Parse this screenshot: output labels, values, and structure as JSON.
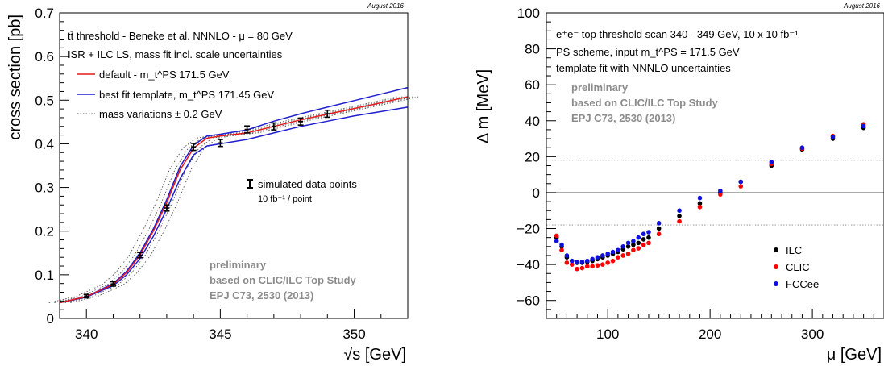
{
  "chart_data": [
    {
      "type": "line",
      "date_stamp": "August 2016",
      "xlabel": "√s [GeV]",
      "ylabel": "cross section [pb]",
      "xlim": [
        339,
        352
      ],
      "ylim": [
        0,
        0.7
      ],
      "x_ticks": [
        "340",
        "345",
        "350"
      ],
      "y_ticks": [
        "0",
        "0.1",
        "0.2",
        "0.3",
        "0.4",
        "0.5",
        "0.6",
        "0.7"
      ],
      "header_lines": [
        "tt̄ threshold - Beneke et al. NNNLO - μ = 80 GeV",
        "ISR + ILC LS, mass fit incl. scale uncertainties"
      ],
      "legend": [
        {
          "label": "default - m_t^PS 171.5 GeV",
          "color": "#e41a1c",
          "style": "solid"
        },
        {
          "label": "best fit template,  m_t^PS 171.45 GeV",
          "color": "#1f1fd0",
          "style": "solid"
        },
        {
          "label": "mass variations ± 0.2 GeV",
          "color": "#555555",
          "style": "dotted"
        }
      ],
      "data_legend": {
        "label": "simulated data points",
        "sublabel": "10 fb⁻¹ / point"
      },
      "watermark": [
        "preliminary",
        "based on CLIC/ILC Top Study",
        "EPJ C73, 2530 (2013)"
      ],
      "series": [
        {
          "name": "default - m_t^PS 171.5 GeV",
          "color": "#e41a1c",
          "x": [
            339,
            340,
            341,
            341.5,
            342,
            342.5,
            343,
            343.5,
            344,
            344.5,
            345,
            346,
            347,
            348,
            349,
            350,
            351,
            352
          ],
          "y": [
            0.036,
            0.05,
            0.078,
            0.105,
            0.145,
            0.2,
            0.265,
            0.34,
            0.39,
            0.413,
            0.418,
            0.425,
            0.44,
            0.455,
            0.468,
            0.481,
            0.494,
            0.508
          ]
        },
        {
          "name": "best fit template,  m_t^PS 171.45 GeV",
          "color": "#1f1fd0",
          "x": [
            339,
            340,
            341,
            341.5,
            342,
            342.5,
            343,
            343.5,
            344,
            344.5,
            345,
            346,
            347,
            348,
            349,
            350,
            351,
            352
          ],
          "y": [
            0.036,
            0.05,
            0.08,
            0.108,
            0.15,
            0.205,
            0.272,
            0.348,
            0.397,
            0.418,
            0.422,
            0.432,
            0.452,
            0.469,
            0.484,
            0.499,
            0.514,
            0.529
          ]
        },
        {
          "name": "best fit template lower",
          "color": "#1f1fd0",
          "x": [
            339,
            340,
            341,
            341.5,
            342,
            342.5,
            343,
            343.5,
            344,
            344.5,
            345,
            346,
            347,
            348,
            349,
            350,
            351,
            352
          ],
          "y": [
            0.036,
            0.049,
            0.075,
            0.1,
            0.137,
            0.188,
            0.25,
            0.32,
            0.375,
            0.395,
            0.4,
            0.41,
            0.425,
            0.44,
            0.452,
            0.464,
            0.474,
            0.484
          ]
        }
      ],
      "variation_shifts_gev": [
        -0.4,
        -0.2,
        0.2,
        0.4
      ],
      "data_points": {
        "x": [
          340,
          341,
          342,
          343,
          344,
          345,
          346,
          347,
          348,
          349
        ],
        "y": [
          0.051,
          0.079,
          0.145,
          0.253,
          0.393,
          0.402,
          0.433,
          0.44,
          0.451,
          0.469
        ],
        "err": [
          0.004,
          0.005,
          0.006,
          0.007,
          0.008,
          0.008,
          0.008,
          0.008,
          0.008,
          0.008
        ]
      }
    },
    {
      "type": "scatter",
      "date_stamp": "August 2016",
      "xlabel": "μ [GeV]",
      "ylabel": "Δ m [MeV]",
      "xlim": [
        40,
        370
      ],
      "ylim": [
        -70,
        100
      ],
      "x_ticks": [
        "100",
        "200",
        "300"
      ],
      "y_ticks": [
        "−60",
        "−40",
        "−20",
        "0",
        "20",
        "40",
        "60",
        "80",
        "100"
      ],
      "header_lines": [
        "e⁺e⁻ top threshold scan 340 - 349 GeV, 10 x 10 fb⁻¹",
        "PS scheme, input m_t^PS = 171.5 GeV",
        "template fit with NNNLO uncertainties"
      ],
      "watermark": [
        "preliminary",
        "based on CLIC/ILC Top Study",
        "EPJ C73, 2530 (2013)"
      ],
      "reference_lines": [
        18,
        -18
      ],
      "series": [
        {
          "name": "ILC",
          "color": "#000000",
          "x": [
            50,
            55,
            60,
            65,
            70,
            75,
            80,
            85,
            90,
            95,
            100,
            105,
            110,
            115,
            120,
            125,
            130,
            135,
            140,
            150,
            170,
            190,
            210,
            230,
            260,
            290,
            320,
            350
          ],
          "y": [
            -25,
            -30,
            -36,
            -38,
            -39,
            -39,
            -38.5,
            -38,
            -37,
            -36,
            -35,
            -34,
            -33,
            -31.5,
            -30,
            -29,
            -28,
            -26,
            -25,
            -20,
            -13,
            -6,
            0,
            6,
            15,
            24,
            30,
            36
          ]
        },
        {
          "name": "CLIC",
          "color": "#ff0000",
          "x": [
            50,
            55,
            60,
            65,
            70,
            75,
            80,
            85,
            90,
            95,
            100,
            105,
            110,
            115,
            120,
            125,
            130,
            135,
            140,
            150,
            170,
            190,
            210,
            230,
            260,
            290,
            320,
            350
          ],
          "y": [
            -24,
            -32,
            -39,
            -40,
            -42.5,
            -42,
            -41,
            -41,
            -40.5,
            -40,
            -39,
            -38,
            -36,
            -35,
            -34,
            -32,
            -31,
            -29,
            -28,
            -23,
            -16,
            -8,
            -1,
            3.5,
            16,
            24.5,
            31.5,
            38
          ]
        },
        {
          "name": "FCCee",
          "color": "#1010dd",
          "x": [
            50,
            55,
            60,
            65,
            70,
            75,
            80,
            85,
            90,
            95,
            100,
            105,
            110,
            115,
            120,
            125,
            130,
            135,
            140,
            150,
            170,
            190,
            210,
            230,
            260,
            290,
            320,
            350
          ],
          "y": [
            -27,
            -29,
            -35,
            -38,
            -38.5,
            -38.5,
            -38,
            -37,
            -36,
            -35,
            -34,
            -33,
            -32,
            -30,
            -28,
            -27,
            -25,
            -23,
            -22,
            -17,
            -10,
            -3,
            1,
            6,
            17,
            25,
            31,
            37
          ]
        }
      ]
    }
  ]
}
